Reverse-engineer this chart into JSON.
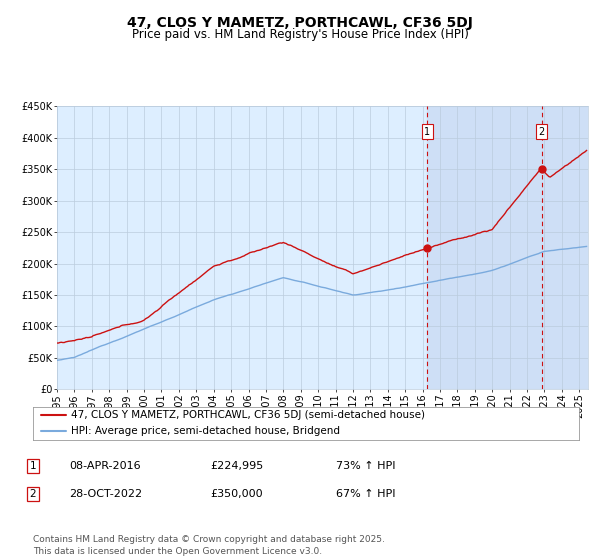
{
  "title": "47, CLOS Y MAMETZ, PORTHCAWL, CF36 5DJ",
  "subtitle": "Price paid vs. HM Land Registry's House Price Index (HPI)",
  "ylim": [
    0,
    450000
  ],
  "yticks": [
    0,
    50000,
    100000,
    150000,
    200000,
    250000,
    300000,
    350000,
    400000,
    450000
  ],
  "ytick_labels": [
    "£0",
    "£50K",
    "£100K",
    "£150K",
    "£200K",
    "£250K",
    "£300K",
    "£350K",
    "£400K",
    "£450K"
  ],
  "hpi_color": "#7aaadd",
  "price_color": "#cc1111",
  "bg_color": "#ddeeff",
  "shade_color": "#ccddf5",
  "grid_color": "#bbccdd",
  "vline_color": "#cc1111",
  "marker1_year": 2016.27,
  "marker1_price": 224995,
  "marker2_year": 2022.83,
  "marker2_price": 350000,
  "annotation1_date": "08-APR-2016",
  "annotation1_price": "£224,995",
  "annotation1_hpi": "73% ↑ HPI",
  "annotation2_date": "28-OCT-2022",
  "annotation2_price": "£350,000",
  "annotation2_hpi": "67% ↑ HPI",
  "legend_line1": "47, CLOS Y MAMETZ, PORTHCAWL, CF36 5DJ (semi-detached house)",
  "legend_line2": "HPI: Average price, semi-detached house, Bridgend",
  "footer": "Contains HM Land Registry data © Crown copyright and database right 2025.\nThis data is licensed under the Open Government Licence v3.0.",
  "title_fontsize": 10,
  "subtitle_fontsize": 8.5,
  "tick_fontsize": 7,
  "legend_fontsize": 7.5,
  "annot_fontsize": 8,
  "footer_fontsize": 6.5
}
